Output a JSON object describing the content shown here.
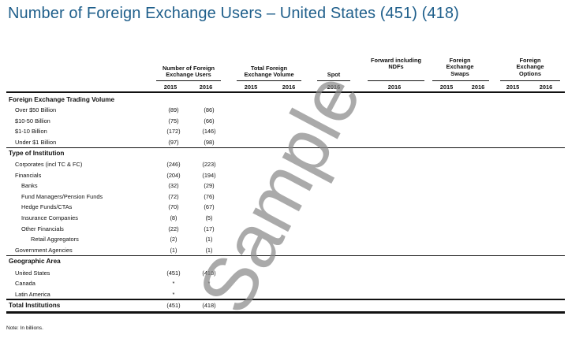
{
  "title": "Number of Foreign Exchange Users – United States (451) (418)",
  "column_groups": [
    "Number of Foreign\nExchange Users",
    "Total Foreign\nExchange Volume",
    "Spot",
    "Forward including\nNDFs",
    "Foreign\nExchange\nSwaps",
    "Foreign\nExchange\nOptions"
  ],
  "years": [
    "2015",
    "2016",
    "2015",
    "2016",
    "2016",
    "2016",
    "2015",
    "2016",
    "2015",
    "2016"
  ],
  "sections": [
    {
      "title": "Foreign Exchange Trading Volume",
      "rows": [
        {
          "label": "Over $50 Billion",
          "v2015": "(89)",
          "v2016": "(86)"
        },
        {
          "label": "$10-50 Billion",
          "v2015": "(75)",
          "v2016": "(66)"
        },
        {
          "label": "$1-10 Billion",
          "v2015": "(172)",
          "v2016": "(146)"
        },
        {
          "label": "Under $1  Billion",
          "v2015": "(97)",
          "v2016": "(98)"
        }
      ]
    },
    {
      "title": "Type of Institution",
      "rows": [
        {
          "label": "Corporates (incl TC & FC)",
          "v2015": "(246)",
          "v2016": "(223)"
        },
        {
          "label": "Financials",
          "v2015": "(204)",
          "v2016": "(194)"
        },
        {
          "label": "Banks",
          "v2015": "(32)",
          "v2016": "(29)"
        },
        {
          "label": "Fund Managers/Pension Funds",
          "v2015": "(72)",
          "v2016": "(76)"
        },
        {
          "label": "Hedge Funds/CTAs",
          "v2015": "(70)",
          "v2016": "(67)"
        },
        {
          "label": "Insurance Companies",
          "v2015": "(8)",
          "v2016": "(5)"
        },
        {
          "label": "Other Financials",
          "v2015": "(22)",
          "v2016": "(17)"
        },
        {
          "label": "Retail Aggregators",
          "v2015": "(2)",
          "v2016": "(1)"
        },
        {
          "label": "Government Agencies",
          "v2015": "(1)",
          "v2016": "(1)"
        }
      ]
    },
    {
      "title": "Geographic Area",
      "rows": [
        {
          "label": "United States",
          "v2015": "(451)",
          "v2016": "(418)"
        },
        {
          "label": "Canada",
          "v2015": "*",
          "v2016": "*"
        },
        {
          "label": "Latin America",
          "v2015": "*",
          "v2016": ""
        }
      ]
    }
  ],
  "total": {
    "label": "Total Institutions",
    "v2015": "(451)",
    "v2016": "(418)"
  },
  "note": "Note: In billions.",
  "watermark": "Sample"
}
